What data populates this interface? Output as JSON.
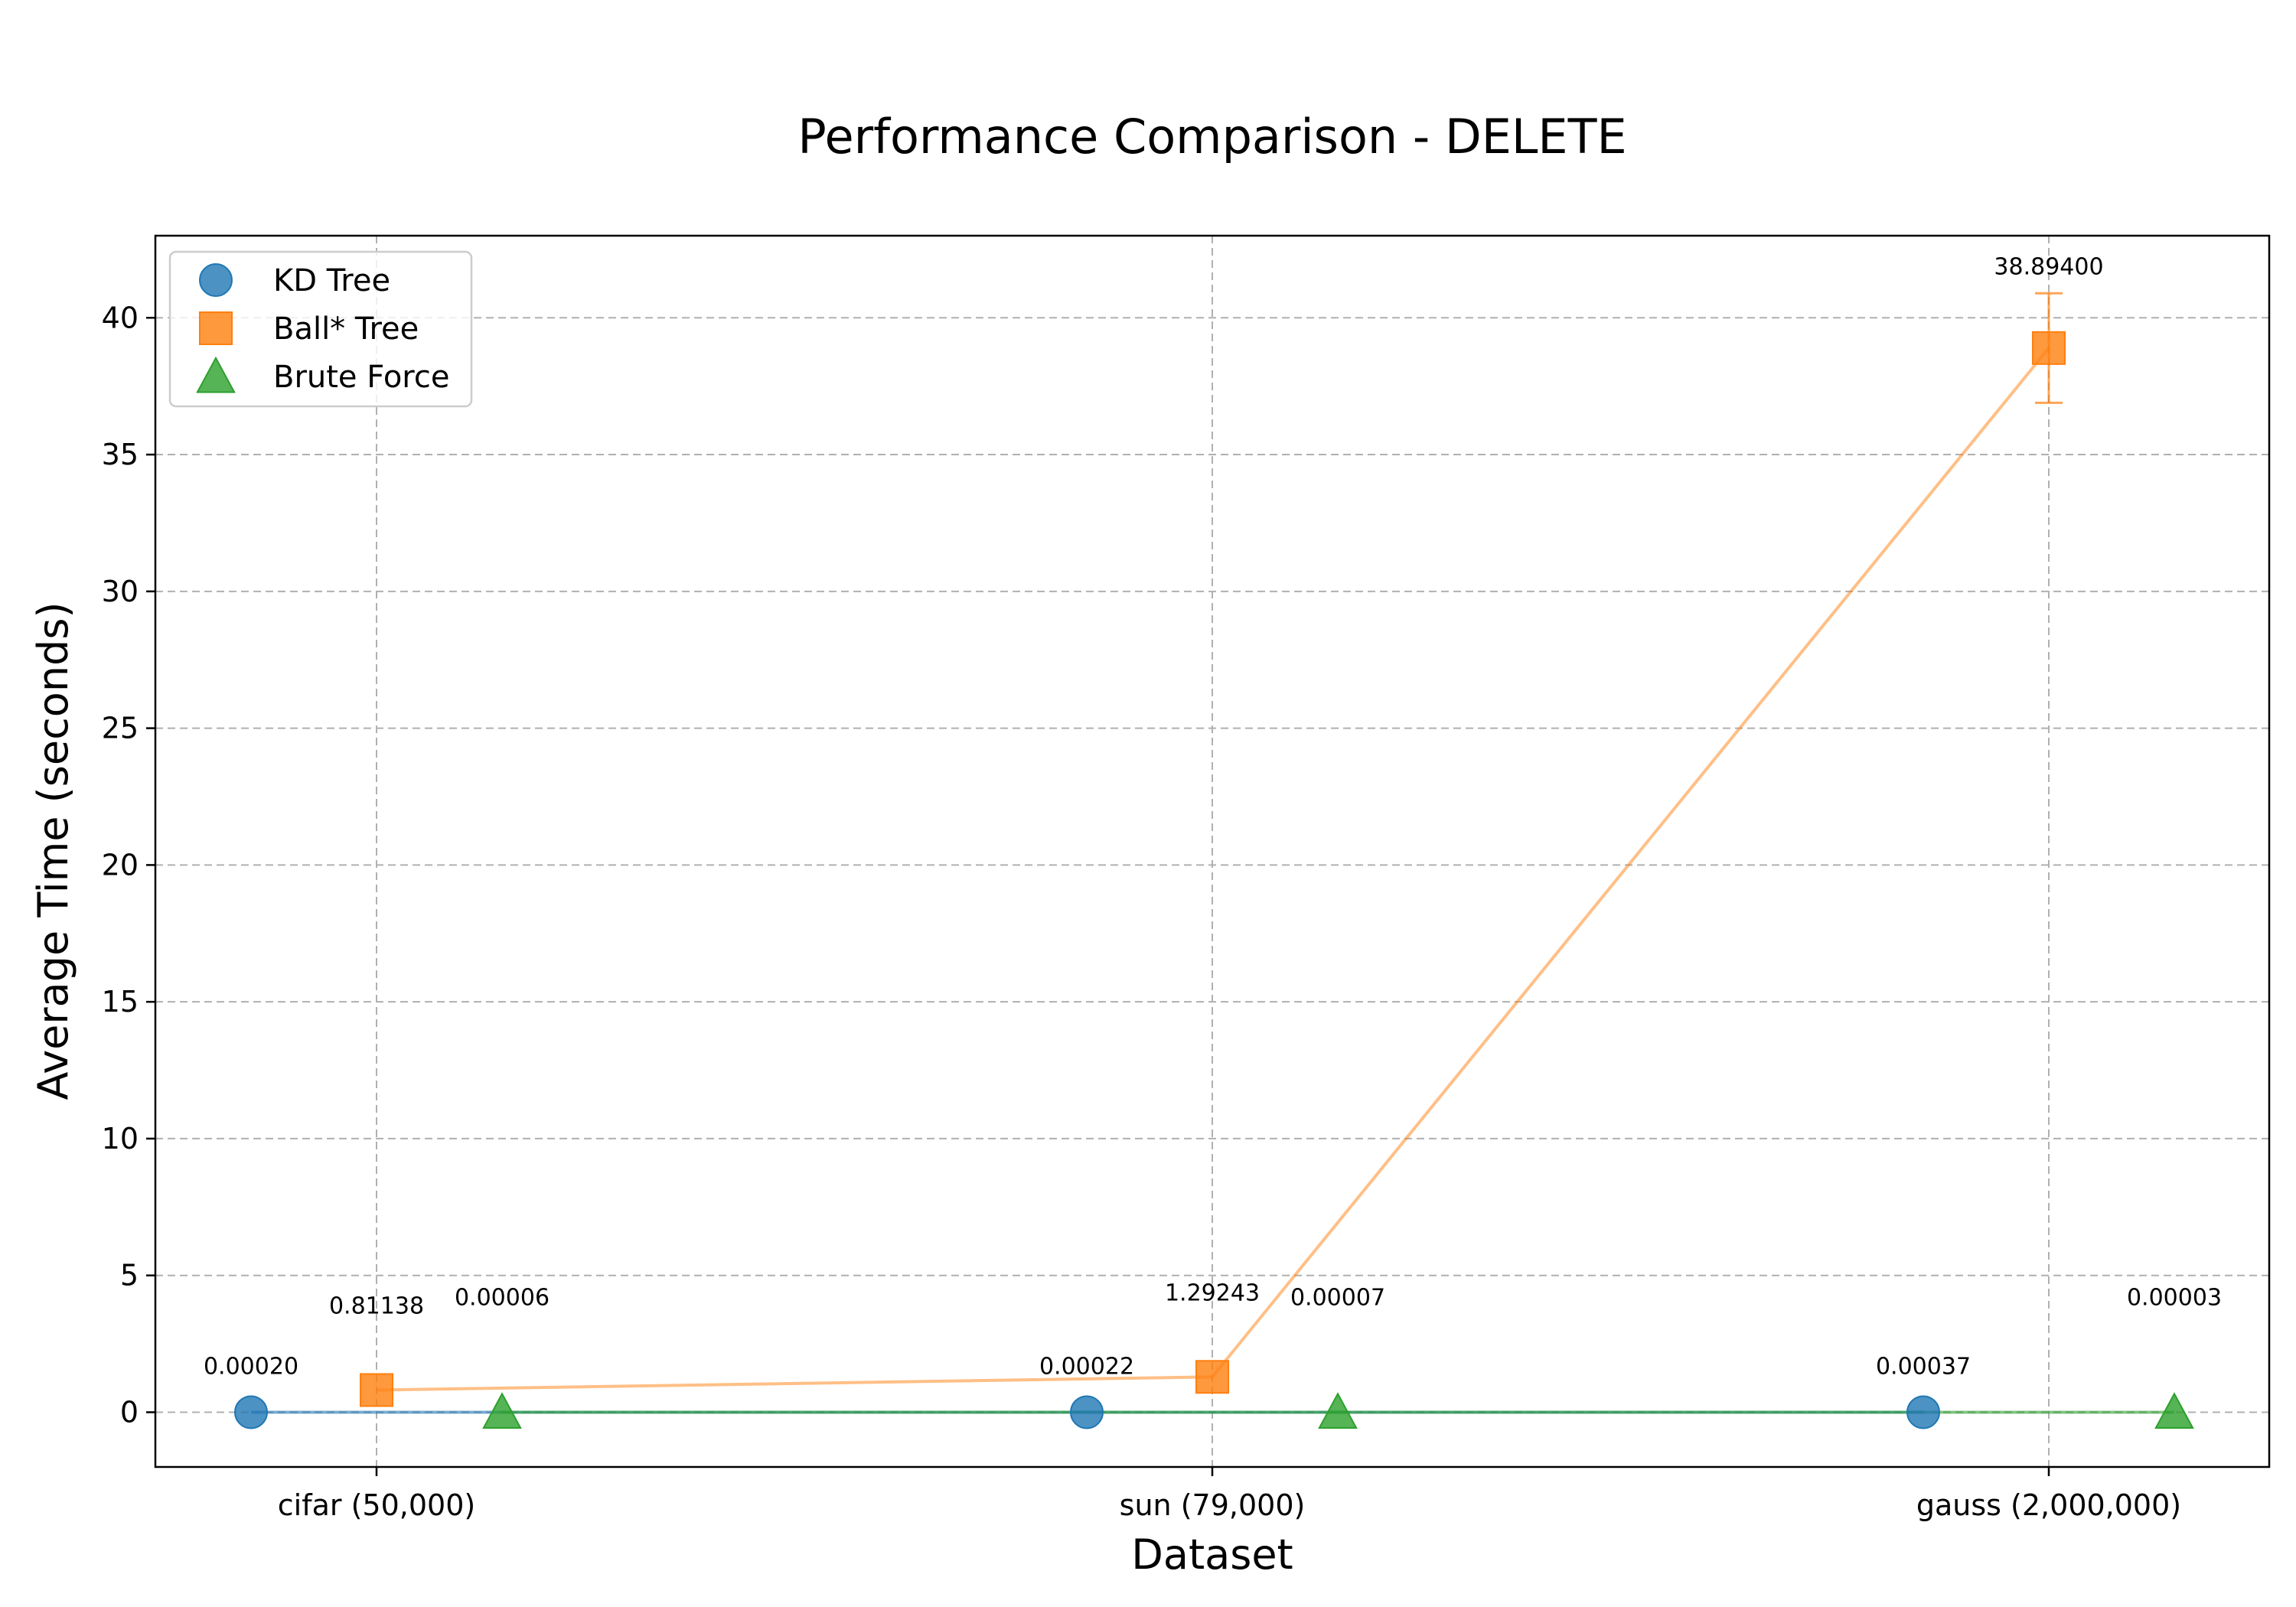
{
  "chart_data": {
    "type": "scatter",
    "title": "Performance Comparison - DELETE",
    "xlabel": "Dataset",
    "ylabel": "Average Time (seconds)",
    "categories": [
      "cifar (50,000)",
      "sun (79,000)",
      "gauss (2,000,000)"
    ],
    "ylim": [
      -2,
      43
    ],
    "yticks": [
      0,
      5,
      10,
      15,
      20,
      25,
      30,
      35,
      40
    ],
    "grid": true,
    "legend_position": "top-left",
    "series": [
      {
        "name": "KD Tree",
        "marker": "circle",
        "color": "#1f77b4",
        "values": [
          0.0002,
          0.00022,
          0.00037
        ],
        "labels": [
          "0.00020",
          "0.00022",
          "0.00037"
        ]
      },
      {
        "name": "Ball* Tree",
        "marker": "square",
        "color": "#ff7f0e",
        "values": [
          0.81138,
          1.29243,
          38.894
        ],
        "labels": [
          "0.81138",
          "1.29243",
          "38.89400"
        ],
        "error": [
          0,
          0,
          2.0
        ]
      },
      {
        "name": "Brute Force",
        "marker": "triangle",
        "color": "#2ca02c",
        "values": [
          6e-05,
          7e-05,
          3e-05
        ],
        "labels": [
          "0.00006",
          "0.00007",
          "0.00003"
        ]
      }
    ]
  }
}
